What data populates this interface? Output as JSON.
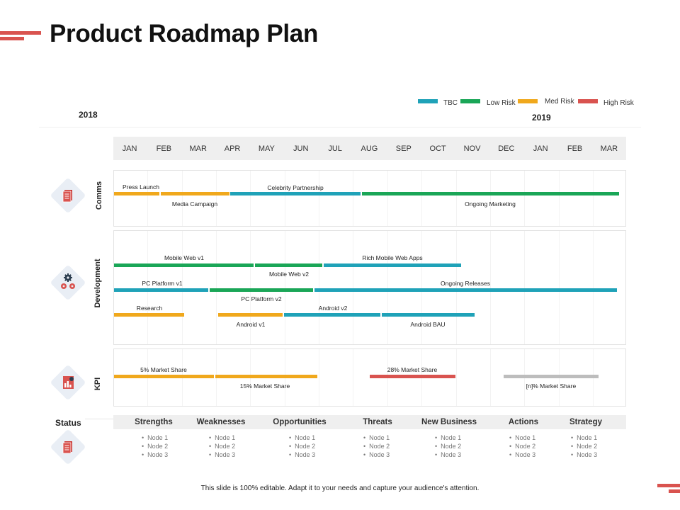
{
  "title": "Product Roadmap Plan",
  "legend": [
    {
      "label": "TBC",
      "color": "#1fa2b8"
    },
    {
      "label": "Low Risk",
      "color": "#1aa657"
    },
    {
      "label": "Med Risk",
      "color": "#f0a81c"
    },
    {
      "label": "High Risk",
      "color": "#d9534f"
    }
  ],
  "years": {
    "start": "2018",
    "end": "2019"
  },
  "months": [
    "JAN",
    "FEB",
    "MAR",
    "APR",
    "MAY",
    "JUN",
    "JUL",
    "AUG",
    "SEP",
    "OCT",
    "NOV",
    "DEC",
    "JAN",
    "FEB",
    "MAR"
  ],
  "rows": {
    "comms": "Comms",
    "development": "Development",
    "kpi": "KPI"
  },
  "comms": {
    "press_launch": "Press Launch",
    "media_campaign": "Media Campaign",
    "celebrity_partnership": "Celebrity Partnership",
    "ongoing_marketing": "Ongoing Marketing"
  },
  "development": {
    "mobile_web_v1": "Mobile Web v1",
    "mobile_web_v2": "Mobile Web v2",
    "rich_mobile_web_apps": "Rich Mobile Web Apps",
    "pc_platform_v1": "PC Platform v1",
    "pc_platform_v2": "PC Platform v2",
    "ongoing_releases": "Ongoing Releases",
    "research": "Research",
    "android_v1": "Android v1",
    "android_v2": "Android v2",
    "android_bau": "Android BAU"
  },
  "kpi": {
    "share_5": "5% Market Share",
    "share_15": "15% Market Share",
    "share_28": "28% Market Share",
    "share_n": "[n]% Market Share"
  },
  "status": {
    "label": "Status",
    "columns": [
      {
        "heading": "Strengths",
        "nodes": [
          "Node 1",
          "Node 2",
          "Node 3"
        ]
      },
      {
        "heading": "Weaknesses",
        "nodes": [
          "Node 1",
          "Node 2",
          "Node 3"
        ]
      },
      {
        "heading": "Opportunities",
        "nodes": [
          "Node 1",
          "Node 2",
          "Node 3"
        ]
      },
      {
        "heading": "Threats",
        "nodes": [
          "Node 1",
          "Node 2",
          "Node 3"
        ]
      },
      {
        "heading": "New Business",
        "nodes": [
          "Node 1",
          "Node 2",
          "Node 3"
        ]
      },
      {
        "heading": "Actions",
        "nodes": [
          "Node 1",
          "Node 2",
          "Node 3"
        ]
      },
      {
        "heading": "Strategy",
        "nodes": [
          "Node 1",
          "Node 2",
          "Node 3"
        ]
      }
    ]
  },
  "footer": "This slide is 100% editable.  Adapt it to your needs and capture your audience's attention.",
  "icons": {
    "comms": "document-icon",
    "development": "gears-icon",
    "kpi": "chart-report-icon",
    "status": "document-icon"
  }
}
